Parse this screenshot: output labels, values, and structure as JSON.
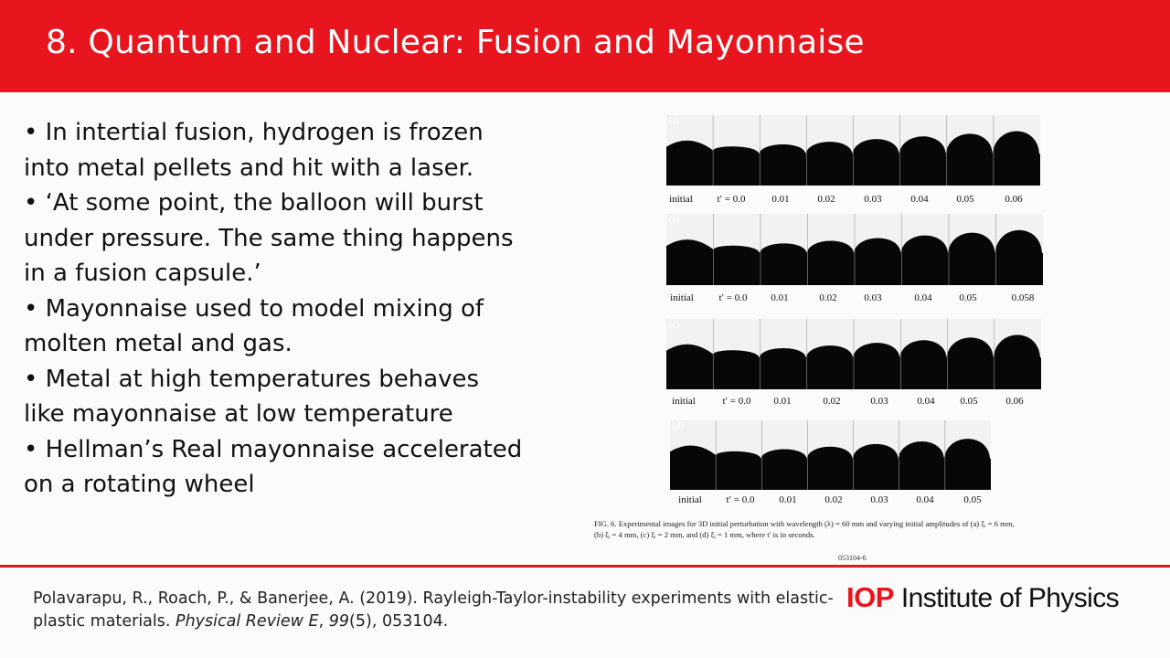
{
  "slide": {
    "title": "8. Quantum and Nuclear: Fusion and Mayonnaise"
  },
  "bullets": [
    "• In intertial fusion, hydrogen is frozen",
    "into metal pellets and hit with a laser.",
    "• ‘At some point, the balloon will burst",
    "under pressure. The same thing happens",
    "in a fusion capsule.’",
    "• Mayonnaise used to model mixing of",
    "molten metal and gas.",
    "• Metal at high temperatures behaves",
    "like mayonnaise at low temperature",
    "• Hellman’s Real mayonnaise accelerated",
    "on a rotating wheel"
  ],
  "figure": {
    "panels": [
      {
        "label": "(a)",
        "ticks": [
          "initial",
          "t′ = 0.0",
          "0.01",
          "0.02",
          "0.03",
          "0.04",
          "0.05",
          "0.06"
        ]
      },
      {
        "label": "(b)",
        "ticks": [
          "initial",
          "t′ = 0.0",
          "0.01",
          "0.02",
          "0.03",
          "0.04",
          "0.05",
          "0.058"
        ]
      },
      {
        "label": "(c)",
        "ticks": [
          "initial",
          "t′ = 0.0",
          "0.01",
          "0.02",
          "0.03",
          "0.04",
          "0.05",
          "0.06"
        ]
      },
      {
        "label": "(d)",
        "ticks": [
          "initial",
          "t′ = 0.0",
          "0.01",
          "0.02",
          "0.03",
          "0.04",
          "0.05"
        ]
      }
    ],
    "caption_line1": "FIG. 6. Experimental images for 3D initial perturbation with wavelength (λ) = 60 mm and varying initial amplitudes of (a) ξᵢ = 6 mm,",
    "caption_line2": "(b) ξᵢ = 4 mm, (c) ξᵢ = 2 mm, and (d) ξᵢ = 1 mm, where t′ is in seconds.",
    "page_number": "053104-6"
  },
  "footer": {
    "ref_authors": "Polavarapu, R., Roach, P., & Banerjee, A. (2019). Rayleigh-Taylor-instability experiments with elastic-plastic materials. ",
    "ref_journal": "Physical Review E",
    "ref_sep": ", ",
    "ref_volume": "99",
    "ref_issue": "(5), 053104."
  },
  "logo": {
    "short": "IOP",
    "full": "Institute of Physics",
    "color": "#e8151f"
  },
  "colors": {
    "header": "#e8151f",
    "divider": "#e8151f"
  }
}
